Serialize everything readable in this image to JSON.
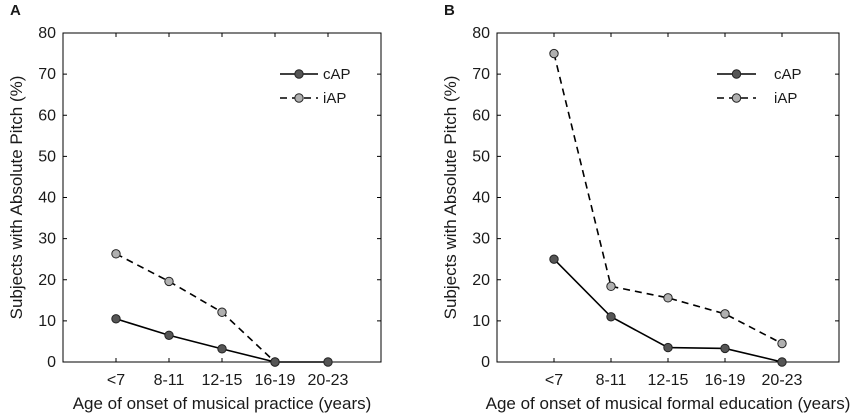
{
  "chart_data": [
    {
      "panel": "A",
      "type": "line",
      "title": "",
      "xlabel": "Age of onset of musical practice (years)",
      "ylabel": "Subjects with Absolute Pitch (%)",
      "categories": [
        "<7",
        "8-11",
        "12-15",
        "16-19",
        "20-23"
      ],
      "ylim": [
        0,
        80
      ],
      "yticks": [
        0,
        10,
        20,
        30,
        40,
        50,
        60,
        70,
        80
      ],
      "legend_position": "top-right",
      "series": [
        {
          "name": "cAP",
          "style": "solid",
          "marker_color": "#555555",
          "values": [
            10.5,
            6.5,
            3.2,
            0,
            0
          ]
        },
        {
          "name": "iAP",
          "style": "dashed",
          "marker_color": "#b0b0b0",
          "values": [
            26.3,
            19.6,
            12.1,
            0,
            null
          ]
        }
      ]
    },
    {
      "panel": "B",
      "type": "line",
      "title": "",
      "xlabel": "Age of onset of musical formal education (years)",
      "ylabel": "Subjects with Absolute Pitch (%)",
      "categories": [
        "<7",
        "8-11",
        "12-15",
        "16-19",
        "20-23"
      ],
      "ylim": [
        0,
        80
      ],
      "yticks": [
        0,
        10,
        20,
        30,
        40,
        50,
        60,
        70,
        80
      ],
      "legend_position": "top-right",
      "series": [
        {
          "name": "cAP",
          "style": "solid",
          "marker_color": "#555555",
          "values": [
            25,
            11,
            3.5,
            3.3,
            0
          ]
        },
        {
          "name": "iAP",
          "style": "dashed",
          "marker_color": "#b0b0b0",
          "values": [
            75,
            18.4,
            15.6,
            11.7,
            4.5
          ]
        }
      ]
    }
  ]
}
